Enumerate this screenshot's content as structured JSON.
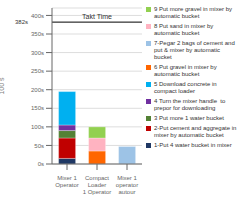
{
  "chart_data": {
    "type": "bar",
    "stacked": true,
    "categories": [
      "Mixer 1 Operator",
      "Compact Loader\n1  Operator",
      "Mixer 1 operator\nautour"
    ],
    "ylabel": "100 s",
    "ylim": [
      0,
      420
    ],
    "yticks": [
      {
        "value": 0,
        "label": "0s"
      },
      {
        "value": 50,
        "label": "50s"
      },
      {
        "value": 100,
        "label": "100s"
      },
      {
        "value": 150,
        "label": "150s"
      },
      {
        "value": 200,
        "label": "200s"
      },
      {
        "value": 250,
        "label": "250s"
      },
      {
        "value": 300,
        "label": "300s"
      },
      {
        "value": 350,
        "label": "350s"
      },
      {
        "value": 400,
        "label": "400s"
      }
    ],
    "grid": true,
    "legend": "right",
    "series": [
      {
        "name": "1-Put 4 water bucket in mixer",
        "color": "#1F3864",
        "values": [
          15,
          0,
          0
        ]
      },
      {
        "name": "2-Put cement and aggregate in\nmixer by automatic bucket",
        "color": "#C00000",
        "values": [
          55,
          0,
          0
        ]
      },
      {
        "name": "3 Put more 1 water bucket",
        "color": "#538135",
        "values": [
          20,
          0,
          0
        ]
      },
      {
        "name": "4 Turn the mixer handle  to\nprepor for downloading",
        "color": "#7030A0",
        "values": [
          15,
          0,
          0
        ]
      },
      {
        "name": "5 Download concrete in\ncompact loader",
        "color": "#00B0F0",
        "values": [
          90,
          0,
          0
        ]
      },
      {
        "name": "6 Put gravel in mixer by\nautomatic bucket",
        "color": "#FF6600",
        "values": [
          0,
          35,
          0
        ]
      },
      {
        "name": "7-Pegar 2 bags of cement and\nput & mixer by automatic\nbucket",
        "color": "#9DC3E6",
        "values": [
          0,
          0,
          47
        ]
      },
      {
        "name": "8 Put sand in mixer by\nautomatic bucket",
        "color": "#FFB3C1",
        "values": [
          0,
          35,
          0
        ]
      },
      {
        "name": "9 Put more gravel in mixer by\nautomatic bucket",
        "color": "#92D050",
        "values": [
          0,
          30,
          0
        ]
      }
    ],
    "reference_lines": [
      {
        "y": 382,
        "color": "#000000",
        "label": "Takt Time",
        "value_label": "382s"
      }
    ]
  }
}
